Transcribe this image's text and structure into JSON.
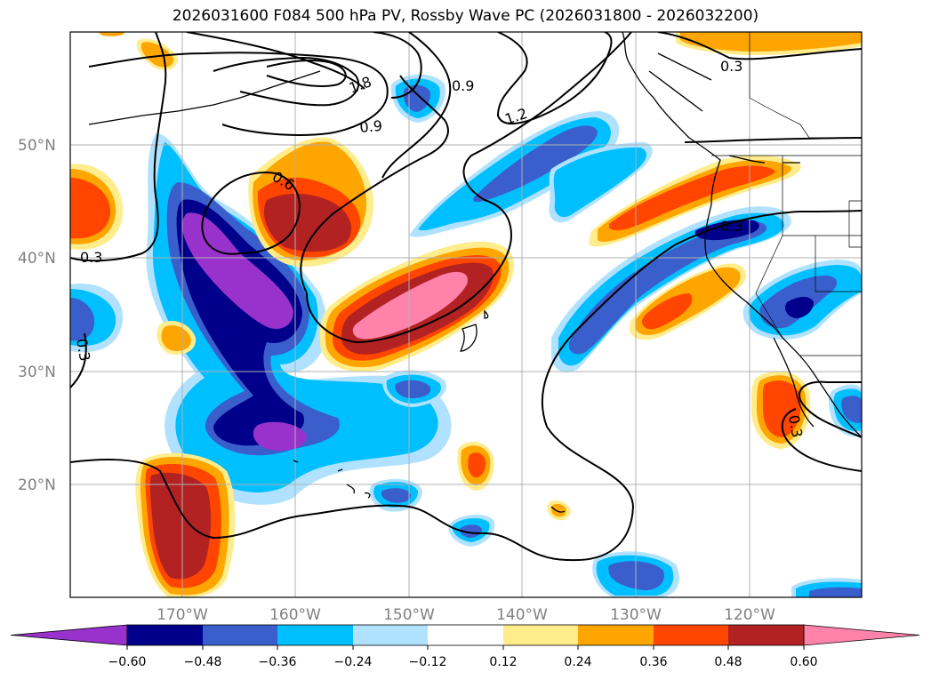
{
  "title": "2026031600 F084 500 hPa PV, Rossby Wave PC (2026031800 - 2026032200)",
  "map": {
    "lat_labels": [
      "50°N",
      "40°N",
      "30°N",
      "20°N"
    ],
    "lon_labels": [
      "170°W",
      "160°W",
      "150°W",
      "140°W",
      "130°W",
      "120°W"
    ],
    "contour_labels": [
      "1.8",
      "0.9",
      "1.2",
      "0.3",
      "0.9",
      "0.6",
      "0.3",
      "0.3",
      "0.3",
      "0.3"
    ]
  },
  "colorbar": {
    "ticks": [
      "−0.60",
      "−0.48",
      "−0.36",
      "−0.24",
      "−0.12",
      "0.12",
      "0.24",
      "0.36",
      "0.48",
      "0.60"
    ],
    "colors": [
      "#9932cc",
      "#00008b",
      "#3a5fcd",
      "#00bfff",
      "#b0e2ff",
      "#ffffff",
      "#ffec8b",
      "#ffa500",
      "#ff4500",
      "#b22222",
      "#ff82ab"
    ]
  }
}
